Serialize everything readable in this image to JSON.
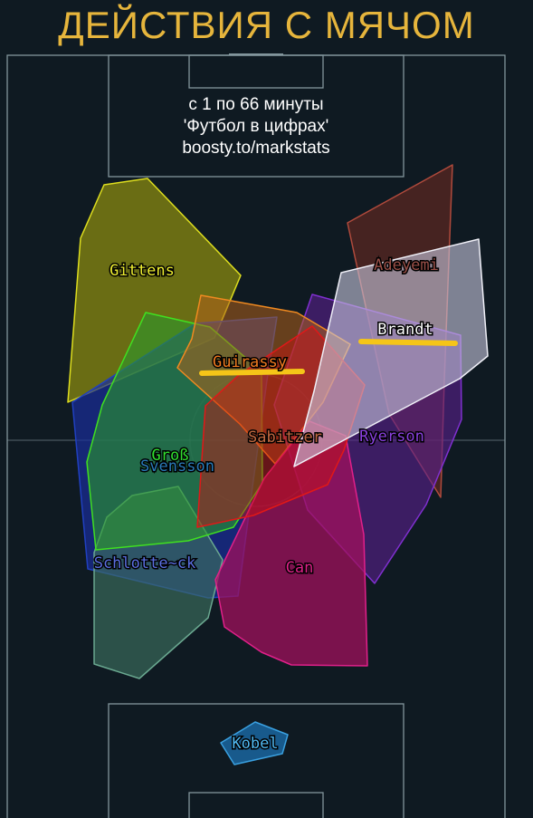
{
  "header": {
    "title": "ДЕЙСТВИЯ С МЯЧОМ",
    "time_range": "с 1 по 66 минуты",
    "source": "'Футбол в цифрах'",
    "link": "boosty.to/markstats"
  },
  "colors": {
    "background": "#0f1a22",
    "pitch_lines": "#8fa3aa",
    "title": "#e6b53c",
    "highlight": "#f5c518"
  },
  "players": [
    {
      "name": "Gittens",
      "color": "#dede1e",
      "fill": "#8a8a10"
    },
    {
      "name": "Adeyemi",
      "color": "#b04a3c",
      "fill": "#6a2a22"
    },
    {
      "name": "Brandt",
      "color": "#f0f0f8",
      "fill": "#c8c8e0"
    },
    {
      "name": "Guirassy",
      "color": "#f08a20",
      "fill": "#b0601a"
    },
    {
      "name": "Ryerson",
      "color": "#8030d0",
      "fill": "#5a2090"
    },
    {
      "name": "Sabitzer",
      "color": "#e01818",
      "fill": "#d01010"
    },
    {
      "name": "Groß",
      "color": "#40e020",
      "fill": "#2c9a2c"
    },
    {
      "name": "Svensson",
      "color": "#2040c0",
      "fill": "#1a2e9a"
    },
    {
      "name": "Schlotte~ck",
      "color": "#6aa890",
      "fill": "#3c6e60"
    },
    {
      "name": "Can",
      "color": "#e0208a",
      "fill": "#a0105c"
    },
    {
      "name": "Kobel",
      "color": "#3aa0e0",
      "fill": "#1a6aa8"
    }
  ]
}
